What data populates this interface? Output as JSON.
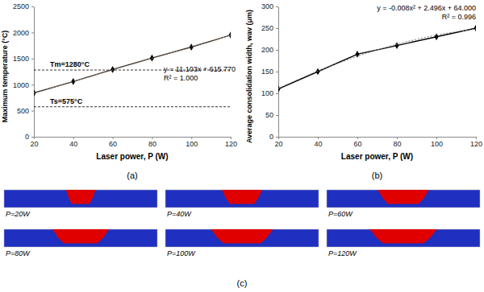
{
  "chart_data": [
    {
      "type": "line",
      "caption": "(a)",
      "x_label": "Laser power, P (W)",
      "y_label": "Maximum temperature (°C)",
      "x": [
        20,
        40,
        60,
        80,
        100,
        120
      ],
      "series": [
        {
          "values": [
            840,
            1060,
            1290,
            1510,
            1720,
            1950
          ],
          "color": "#3d2b1f",
          "marker": "diamond",
          "line_style": "solid"
        },
        {
          "values": [
            838,
            1060,
            1282,
            1504,
            1726,
            1948
          ],
          "color": "#7f7f7f",
          "marker": "none",
          "line_style": "dotted"
        }
      ],
      "xlim": [
        20,
        120
      ],
      "xticks": [
        20,
        40,
        60,
        80,
        100,
        120
      ],
      "ylim": [
        0,
        2500
      ],
      "yticks": [
        0,
        500,
        1000,
        1500,
        2000,
        2500
      ],
      "reference_lines": [
        {
          "value": 1280,
          "label": "Tm=1280°C"
        },
        {
          "value": 575,
          "label": "Ts=575°C"
        }
      ],
      "annotations": [
        "y = 11.103x + 615.770",
        "R² = 1.000"
      ],
      "grid": false
    },
    {
      "type": "line",
      "caption": "(b)",
      "x_label": "Laser power, P (W)",
      "y_label": "Average consolidation width, wav (μm)",
      "x": [
        20,
        40,
        60,
        80,
        100,
        120
      ],
      "series": [
        {
          "values": [
            110,
            150,
            190,
            210,
            230,
            250
          ],
          "color": "#000000",
          "marker": "diamond",
          "line_style": "solid"
        },
        {
          "values": [
            111,
            151,
            185,
            213,
            234,
            248
          ],
          "color": "#7f7f7f",
          "marker": "none",
          "line_style": "dotted"
        }
      ],
      "xlim": [
        20,
        120
      ],
      "xticks": [
        20,
        40,
        60,
        80,
        100,
        120
      ],
      "ylim": [
        0,
        300
      ],
      "yticks": [
        0,
        50,
        100,
        150,
        200,
        250,
        300
      ],
      "annotations": [
        "y = -0.008x² + 2.496x + 64.000",
        "R² = 0.996"
      ],
      "grid": false
    }
  ],
  "panels": {
    "caption": "(c)",
    "labels": [
      "P=20W",
      "P=40W",
      "P=60W",
      "P=80W",
      "P=100W",
      "P=120W"
    ],
    "colors": [
      "#1f2fbf",
      "#e00000"
    ]
  }
}
